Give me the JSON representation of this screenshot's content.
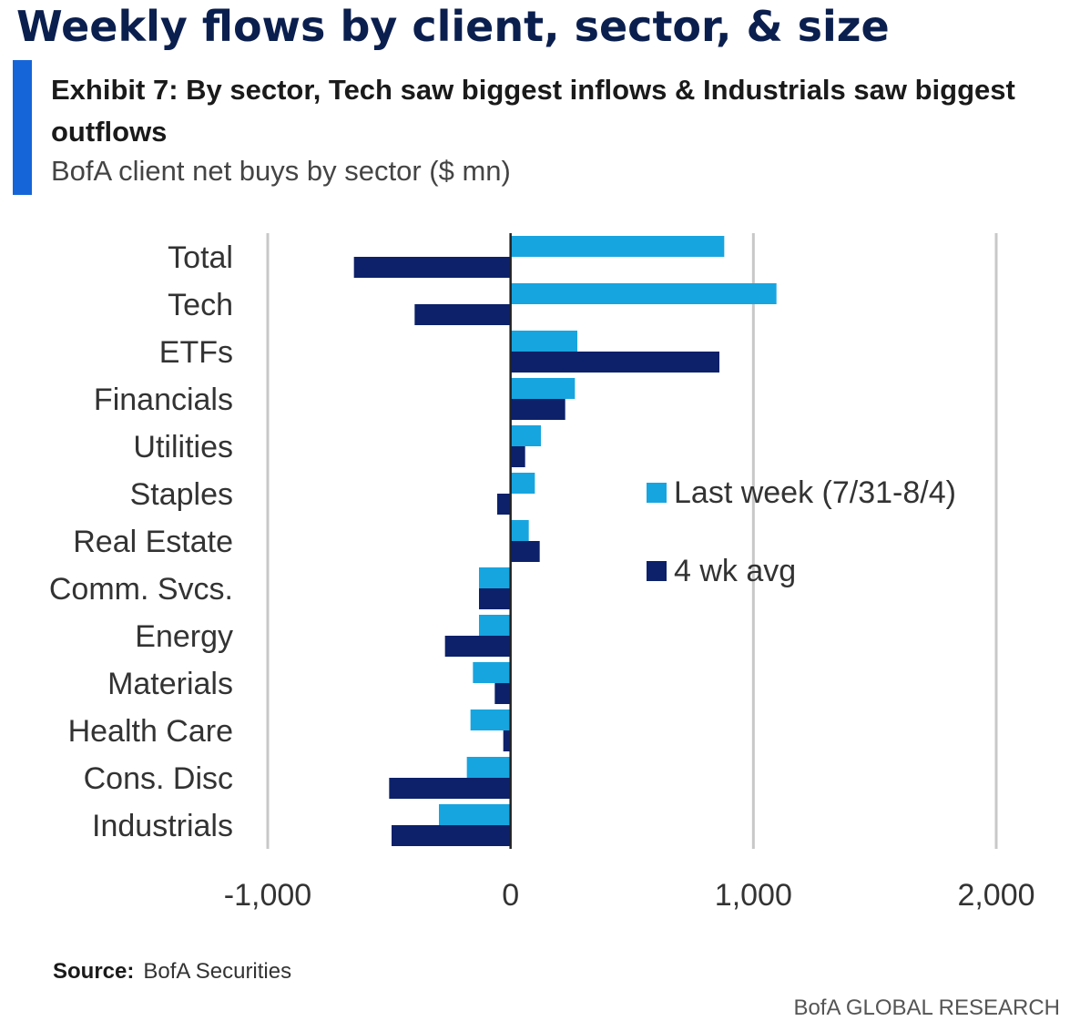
{
  "header": {
    "title": "Weekly flows by client, sector, & size",
    "exhibit_title": "Exhibit 7: By sector, Tech saw biggest inflows & Industrials saw biggest outflows",
    "subtitle": "BofA client net buys by sector ($ mn)"
  },
  "footer": {
    "source_label": "Source:",
    "source_text": "BofA Securities",
    "brand": "BofA GLOBAL RESEARCH"
  },
  "colors": {
    "last_week": "#17a5e0",
    "four_wk_avg": "#0c2169",
    "accent": "#1565d8",
    "gridline": "#c8c8c8",
    "title": "#0b1f4f"
  },
  "chart_data": {
    "type": "bar",
    "orientation": "horizontal",
    "categories": [
      "Total",
      "Tech",
      "ETFs",
      "Financials",
      "Utilities",
      "Staples",
      "Real Estate",
      "Comm. Svcs.",
      "Energy",
      "Materials",
      "Health Care",
      "Cons. Disc",
      "Industrials"
    ],
    "series": [
      {
        "name": "Last week (7/31-8/4)",
        "color": "#17a5e0",
        "values": [
          880,
          1095,
          275,
          265,
          125,
          100,
          75,
          -130,
          -130,
          -155,
          -165,
          -180,
          -295
        ]
      },
      {
        "name": "4 wk avg",
        "color": "#0c2169",
        "values": [
          -645,
          -395,
          860,
          225,
          60,
          -55,
          120,
          -130,
          -270,
          -65,
          -30,
          -500,
          -490
        ]
      }
    ],
    "xlim": [
      -1000,
      2000
    ],
    "xticks": [
      -1000,
      0,
      1000,
      2000
    ],
    "xtick_labels": [
      "-1,000",
      "0",
      "1,000",
      "2,000"
    ],
    "grid": "vertical",
    "legend_position": "right-middle"
  }
}
